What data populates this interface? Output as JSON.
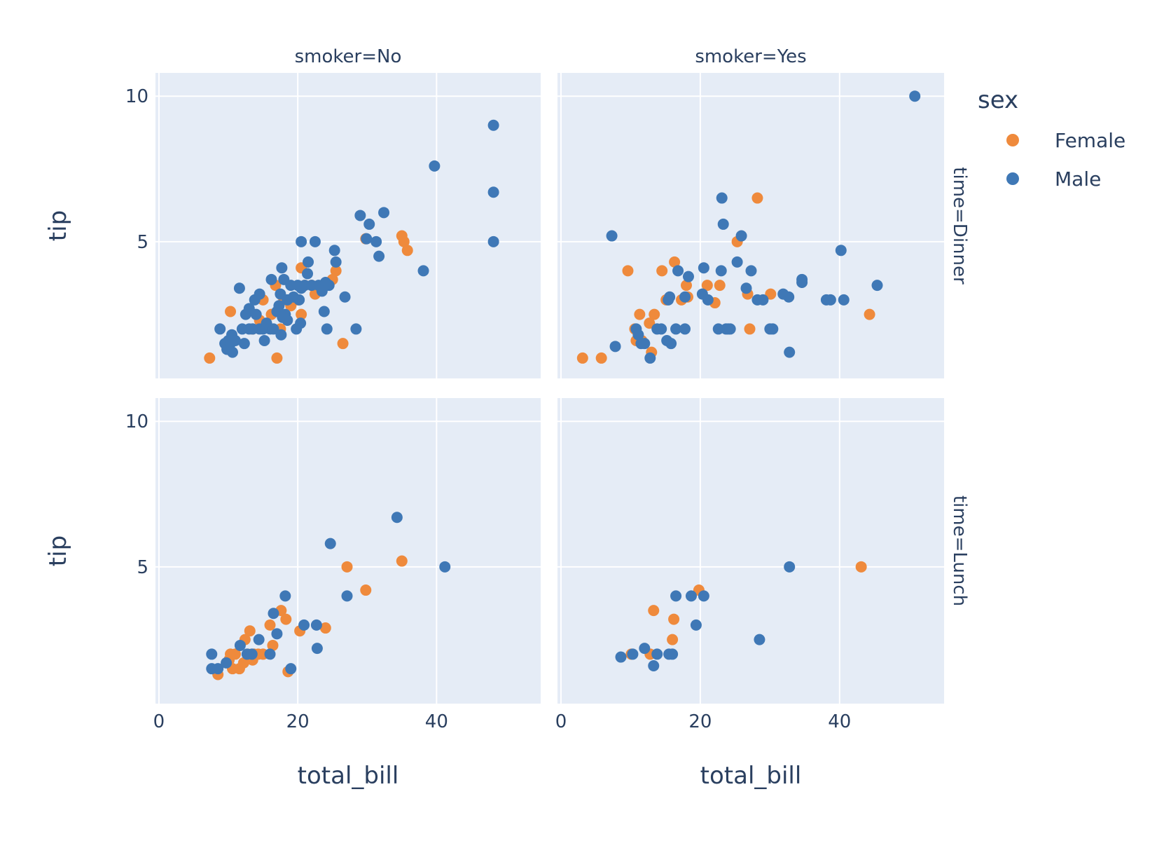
{
  "chart_data": {
    "type": "scatter",
    "x_label": "total_bill",
    "y_label": "tip",
    "x_ticks": [
      0,
      20,
      40
    ],
    "y_ticks": [
      5,
      10
    ],
    "xlim": [
      -0.5,
      55
    ],
    "ylim": [
      0.3,
      10.8
    ],
    "grid": true,
    "legend": {
      "title": "sex",
      "placement": "top-right",
      "entries": [
        {
          "name": "Female",
          "color": "#ef8a3c"
        },
        {
          "name": "Male",
          "color": "#3f78b6"
        }
      ]
    },
    "column_facets": [
      "smoker=No",
      "smoker=Yes"
    ],
    "row_facets": [
      "time=Dinner",
      "time=Lunch"
    ],
    "panels": [
      {
        "row": 0,
        "col": 0,
        "series": [
          {
            "name": "Female",
            "points": [
              [
                7.3,
                1.0
              ],
              [
                10.3,
                2.6
              ],
              [
                13.5,
                2.0
              ],
              [
                14.5,
                2.3
              ],
              [
                15.0,
                3.0
              ],
              [
                16.2,
                2.5
              ],
              [
                16.8,
                3.5
              ],
              [
                17.0,
                1.0
              ],
              [
                17.5,
                2.0
              ],
              [
                18.0,
                3.0
              ],
              [
                19.0,
                2.8
              ],
              [
                20.0,
                3.0
              ],
              [
                20.5,
                2.5
              ],
              [
                20.5,
                4.1
              ],
              [
                21.0,
                3.5
              ],
              [
                22.0,
                3.5
              ],
              [
                22.5,
                3.2
              ],
              [
                24.0,
                3.5
              ],
              [
                25.0,
                3.7
              ],
              [
                25.5,
                4.0
              ],
              [
                26.5,
                1.5
              ],
              [
                29.8,
                5.1
              ],
              [
                35.0,
                5.2
              ],
              [
                35.3,
                5.0
              ],
              [
                35.8,
                4.7
              ]
            ]
          },
          {
            "name": "Male",
            "points": [
              [
                8.8,
                2.0
              ],
              [
                9.5,
                1.5
              ],
              [
                9.8,
                1.3
              ],
              [
                10.0,
                1.6
              ],
              [
                10.3,
                1.5
              ],
              [
                10.5,
                1.8
              ],
              [
                10.6,
                1.2
              ],
              [
                11.0,
                1.6
              ],
              [
                11.6,
                3.4
              ],
              [
                12.0,
                2.0
              ],
              [
                12.3,
                1.5
              ],
              [
                12.5,
                2.5
              ],
              [
                13.0,
                2.0
              ],
              [
                13.0,
                2.7
              ],
              [
                13.5,
                2.0
              ],
              [
                13.8,
                3.0
              ],
              [
                14.0,
                2.5
              ],
              [
                14.5,
                2.0
              ],
              [
                14.5,
                3.2
              ],
              [
                15.0,
                2.0
              ],
              [
                15.2,
                1.6
              ],
              [
                15.5,
                2.2
              ],
              [
                16.0,
                2.0
              ],
              [
                16.2,
                3.7
              ],
              [
                16.5,
                2.0
              ],
              [
                17.0,
                2.6
              ],
              [
                17.3,
                2.8
              ],
              [
                17.5,
                3.2
              ],
              [
                17.6,
                1.8
              ],
              [
                17.7,
                4.1
              ],
              [
                17.8,
                2.4
              ],
              [
                18.0,
                3.7
              ],
              [
                18.2,
                2.5
              ],
              [
                18.5,
                2.3
              ],
              [
                18.5,
                3.0
              ],
              [
                19.0,
                3.5
              ],
              [
                19.4,
                3.1
              ],
              [
                19.8,
                2.0
              ],
              [
                20.0,
                3.5
              ],
              [
                20.2,
                3.0
              ],
              [
                20.4,
                2.2
              ],
              [
                20.5,
                3.4
              ],
              [
                20.5,
                5.0
              ],
              [
                21.0,
                3.5
              ],
              [
                21.4,
                3.9
              ],
              [
                21.5,
                4.3
              ],
              [
                22.0,
                3.5
              ],
              [
                22.5,
                5.0
              ],
              [
                23.0,
                3.5
              ],
              [
                23.5,
                3.3
              ],
              [
                23.7,
                3.5
              ],
              [
                23.8,
                2.6
              ],
              [
                24.0,
                3.6
              ],
              [
                24.2,
                2.0
              ],
              [
                24.5,
                3.5
              ],
              [
                25.3,
                4.7
              ],
              [
                25.5,
                4.3
              ],
              [
                26.8,
                3.1
              ],
              [
                28.4,
                2.0
              ],
              [
                29.0,
                5.9
              ],
              [
                29.9,
                5.1
              ],
              [
                30.3,
                5.6
              ],
              [
                31.3,
                5.0
              ],
              [
                31.7,
                4.5
              ],
              [
                32.4,
                6.0
              ],
              [
                38.1,
                4.0
              ],
              [
                39.7,
                7.6
              ],
              [
                48.2,
                9.0
              ],
              [
                48.2,
                6.7
              ],
              [
                48.2,
                5.0
              ]
            ]
          }
        ]
      },
      {
        "row": 0,
        "col": 1,
        "series": [
          {
            "name": "Female",
            "points": [
              [
                3.1,
                1.0
              ],
              [
                5.8,
                1.0
              ],
              [
                9.6,
                4.0
              ],
              [
                10.6,
                2.0
              ],
              [
                10.8,
                1.6
              ],
              [
                11.3,
                2.5
              ],
              [
                11.6,
                1.6
              ],
              [
                12.7,
                2.2
              ],
              [
                13.0,
                1.2
              ],
              [
                13.4,
                2.5
              ],
              [
                14.5,
                4.0
              ],
              [
                15.1,
                3.0
              ],
              [
                16.3,
                4.3
              ],
              [
                17.3,
                3.0
              ],
              [
                18.0,
                3.5
              ],
              [
                18.2,
                3.1
              ],
              [
                21.0,
                3.5
              ],
              [
                22.1,
                2.9
              ],
              [
                22.8,
                3.5
              ],
              [
                25.3,
                5.0
              ],
              [
                26.8,
                3.2
              ],
              [
                27.1,
                2.0
              ],
              [
                28.2,
                6.5
              ],
              [
                30.1,
                3.2
              ],
              [
                44.3,
                2.5
              ]
            ]
          },
          {
            "name": "Male",
            "points": [
              [
                7.3,
                5.2
              ],
              [
                7.8,
                1.4
              ],
              [
                10.8,
                2.0
              ],
              [
                11.1,
                1.8
              ],
              [
                11.5,
                1.5
              ],
              [
                12.0,
                1.5
              ],
              [
                12.8,
                1.0
              ],
              [
                13.8,
                2.0
              ],
              [
                14.4,
                2.0
              ],
              [
                15.2,
                1.6
              ],
              [
                15.4,
                3.0
              ],
              [
                15.6,
                3.1
              ],
              [
                15.8,
                1.5
              ],
              [
                16.5,
                2.0
              ],
              [
                16.8,
                4.0
              ],
              [
                17.8,
                2.0
              ],
              [
                17.8,
                3.1
              ],
              [
                18.3,
                3.8
              ],
              [
                20.3,
                3.2
              ],
              [
                20.5,
                4.1
              ],
              [
                21.1,
                3.0
              ],
              [
                22.6,
                2.0
              ],
              [
                23.0,
                4.0
              ],
              [
                23.1,
                6.5
              ],
              [
                23.3,
                5.6
              ],
              [
                23.7,
                2.0
              ],
              [
                24.0,
                2.0
              ],
              [
                24.3,
                2.0
              ],
              [
                25.3,
                4.3
              ],
              [
                25.9,
                5.2
              ],
              [
                26.6,
                3.4
              ],
              [
                27.3,
                4.0
              ],
              [
                28.2,
                3.0
              ],
              [
                29.0,
                3.0
              ],
              [
                30.0,
                2.0
              ],
              [
                30.4,
                2.0
              ],
              [
                31.9,
                3.2
              ],
              [
                32.7,
                3.1
              ],
              [
                32.8,
                1.2
              ],
              [
                34.6,
                3.7
              ],
              [
                34.6,
                3.6
              ],
              [
                38.1,
                3.0
              ],
              [
                38.7,
                3.0
              ],
              [
                40.2,
                4.7
              ],
              [
                40.6,
                3.0
              ],
              [
                45.4,
                3.5
              ],
              [
                50.8,
                10.0
              ]
            ]
          }
        ]
      },
      {
        "row": 1,
        "col": 0,
        "series": [
          {
            "name": "Female",
            "points": [
              [
                8.5,
                1.3
              ],
              [
                10.1,
                1.8
              ],
              [
                10.3,
                2.0
              ],
              [
                10.6,
                1.5
              ],
              [
                11.0,
                2.0
              ],
              [
                11.6,
                1.5
              ],
              [
                12.2,
                1.7
              ],
              [
                12.4,
                2.5
              ],
              [
                12.8,
                2.0
              ],
              [
                13.1,
                2.8
              ],
              [
                13.5,
                1.8
              ],
              [
                13.7,
                2.0
              ],
              [
                14.3,
                2.0
              ],
              [
                15.0,
                2.0
              ],
              [
                16.0,
                3.0
              ],
              [
                16.4,
                2.3
              ],
              [
                17.6,
                3.5
              ],
              [
                18.3,
                3.2
              ],
              [
                18.6,
                1.4
              ],
              [
                20.3,
                2.8
              ],
              [
                24.0,
                2.9
              ],
              [
                27.1,
                5.0
              ],
              [
                29.8,
                4.2
              ],
              [
                35.0,
                5.2
              ]
            ]
          },
          {
            "name": "Male",
            "points": [
              [
                7.6,
                2.0
              ],
              [
                7.6,
                1.5
              ],
              [
                8.5,
                1.5
              ],
              [
                9.7,
                1.7
              ],
              [
                11.7,
                2.3
              ],
              [
                12.7,
                2.0
              ],
              [
                13.4,
                2.0
              ],
              [
                14.4,
                2.5
              ],
              [
                16.0,
                2.0
              ],
              [
                16.5,
                3.4
              ],
              [
                17.0,
                2.7
              ],
              [
                18.2,
                4.0
              ],
              [
                19.0,
                1.5
              ],
              [
                20.9,
                3.0
              ],
              [
                22.7,
                3.0
              ],
              [
                22.8,
                2.2
              ],
              [
                24.7,
                5.8
              ],
              [
                27.1,
                4.0
              ],
              [
                34.3,
                6.7
              ],
              [
                41.2,
                5.0
              ]
            ]
          }
        ]
      },
      {
        "row": 1,
        "col": 1,
        "series": [
          {
            "name": "Female",
            "points": [
              [
                10.1,
                2.0
              ],
              [
                12.8,
                2.0
              ],
              [
                13.3,
                3.5
              ],
              [
                16.0,
                2.5
              ],
              [
                16.2,
                3.2
              ],
              [
                19.8,
                4.2
              ],
              [
                43.1,
                5.0
              ]
            ]
          },
          {
            "name": "Male",
            "points": [
              [
                8.6,
                1.9
              ],
              [
                10.3,
                2.0
              ],
              [
                12.0,
                2.2
              ],
              [
                13.3,
                1.6
              ],
              [
                13.8,
                2.0
              ],
              [
                15.5,
                2.0
              ],
              [
                16.0,
                2.0
              ],
              [
                16.5,
                4.0
              ],
              [
                18.7,
                4.0
              ],
              [
                19.4,
                3.0
              ],
              [
                20.5,
                4.0
              ],
              [
                28.5,
                2.5
              ],
              [
                32.8,
                5.0
              ]
            ]
          }
        ]
      }
    ]
  }
}
